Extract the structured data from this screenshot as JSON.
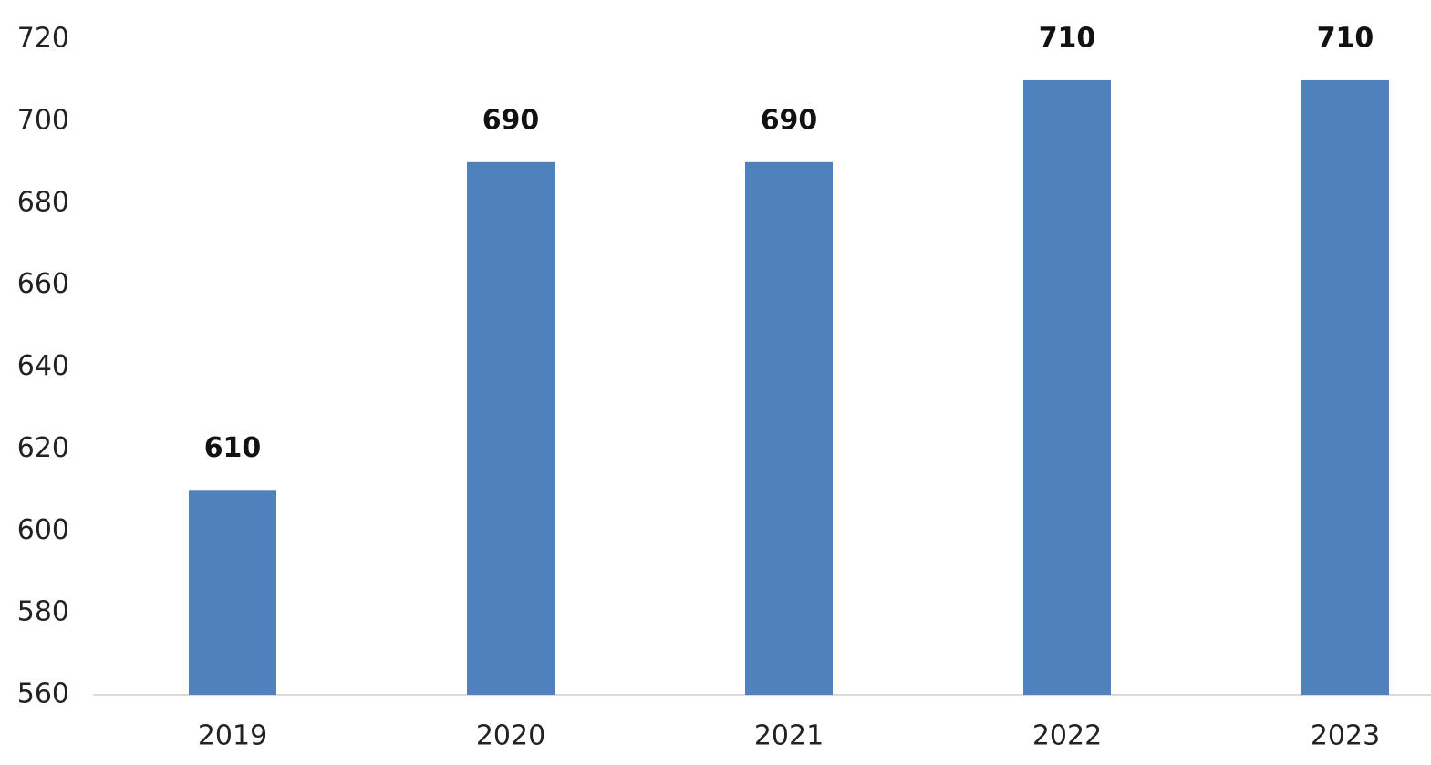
{
  "chart_data": {
    "type": "bar",
    "categories": [
      "2019",
      "2020",
      "2021",
      "2022",
      "2023"
    ],
    "values": [
      610,
      690,
      690,
      710,
      710
    ],
    "color": "#4f81bd",
    "ylim": [
      560,
      720
    ],
    "yticks": [
      560,
      580,
      600,
      620,
      640,
      660,
      680,
      700,
      720
    ],
    "grid": false
  }
}
